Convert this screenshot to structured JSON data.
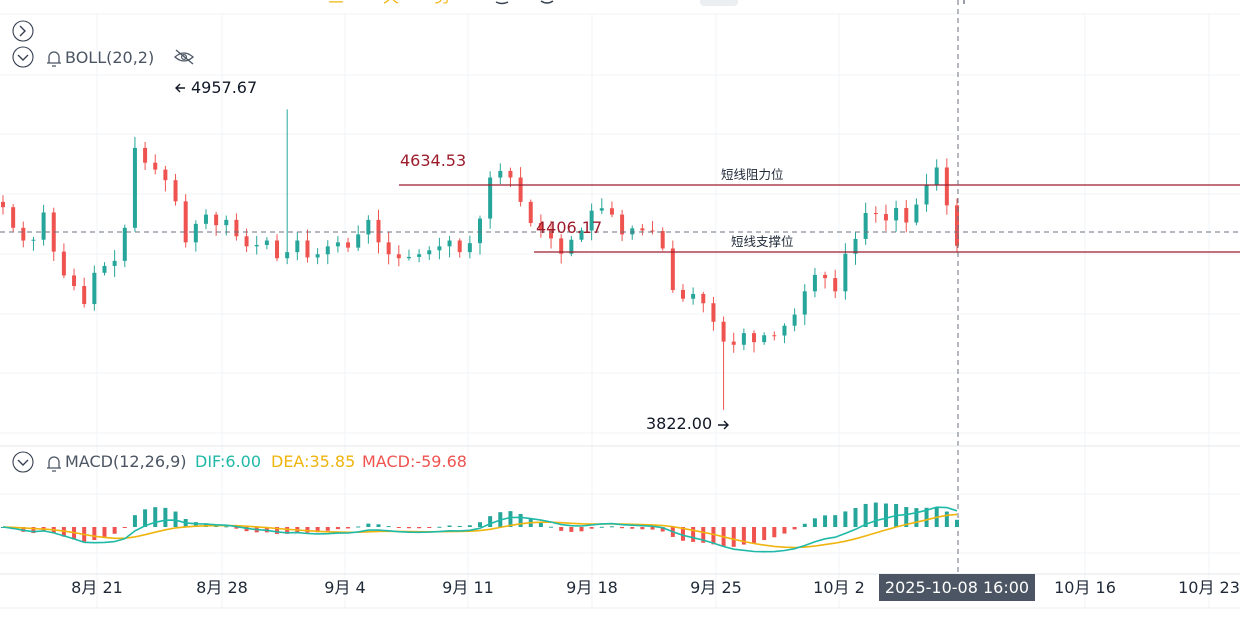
{
  "colors": {
    "up": "#26a69a",
    "down": "#ef5350",
    "dif": "#1fb9a8",
    "dea": "#f0b40f",
    "macd_label": "#ef5350",
    "level_line": "#9c1c2c",
    "level_label": "#9c1c2c",
    "grid": "#f0f3f5",
    "text": "#1f2937",
    "date_badge_bg": "#4b5563"
  },
  "top_toolbar": {
    "glyphs": [
      "三",
      "天",
      "剪"
    ]
  },
  "collapse_icon": "chevron-right-icon",
  "indicators": {
    "boll": {
      "name": "BOLL(20,2)",
      "icons": [
        "chevron-down-icon",
        "bell-icon",
        "eye-off-icon"
      ]
    },
    "macd": {
      "name": "MACD(12,26,9)",
      "dif_label": "DIF:6.00",
      "dea_label": "DEA:35.85",
      "macd_label": "MACD:-59.68",
      "icons": [
        "chevron-down-icon",
        "bell-icon"
      ]
    }
  },
  "annotations": {
    "high_label": "4957.67",
    "low_label": "3822.00",
    "resistance_price_label": "4634.53",
    "support_price_label": "4406.17",
    "resistance_text": "短线阻力位",
    "support_text": "短线支撑位"
  },
  "crosshair_date": "2025-10-08 16:00",
  "chart_data": {
    "type": "candlestick",
    "x_tick_labels": [
      "8月 21",
      "8月 28",
      "9月 4",
      "9月 11",
      "9月 18",
      "9月 25",
      "10月 2",
      "10月 16",
      "10月 23"
    ],
    "y_range": [
      3800,
      5000
    ],
    "levels": [
      {
        "name": "短线阻力位",
        "price": 4634.53
      },
      {
        "name": "短线支撑位",
        "price": 4406.17
      }
    ],
    "high": 4957.67,
    "low": 3822.0,
    "close_series": [
      4588,
      4510,
      4462,
      4465,
      4568,
      4420,
      4330,
      4290,
      4222,
      4340,
      4366,
      4385,
      4510,
      4812,
      4756,
      4730,
      4690,
      4610,
      4455,
      4525,
      4560,
      4520,
      4540,
      4478,
      4440,
      4445,
      4462,
      4395,
      4418,
      4462,
      4398,
      4410,
      4440,
      4455,
      4435,
      4485,
      4540,
      4455,
      4410,
      4395,
      4400,
      4410,
      4425,
      4440,
      4462,
      4418,
      4452,
      4545,
      4700,
      4725,
      4700,
      4608,
      4528,
      4505,
      4470,
      4412,
      4465,
      4500,
      4575,
      4584,
      4560,
      4485,
      4508,
      4500,
      4498,
      4432,
      4275,
      4242,
      4260,
      4225,
      4155,
      4080,
      4068,
      4112,
      4078,
      4104,
      4103,
      4140,
      4182,
      4270,
      4332,
      4320,
      4270,
      4412,
      4468,
      4566,
      4562,
      4538,
      4585,
      4530,
      4598,
      4672,
      4738,
      4595,
      4442
    ],
    "macd": {
      "dif": 6.0,
      "dea": 35.85,
      "macd": -59.68
    }
  }
}
